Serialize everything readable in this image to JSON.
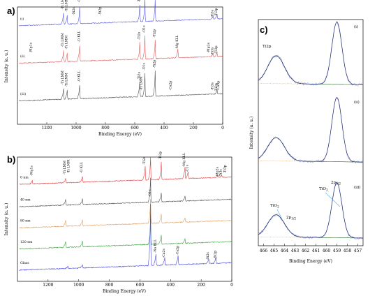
{
  "chart_data": [
    {
      "panel_label": "a)",
      "type": "line",
      "xlabel": "Binding Energy (eV)",
      "ylabel": "Intensity (a. u.)",
      "xlim": [
        1400,
        0
      ],
      "xticks": [
        1200,
        1000,
        800,
        600,
        400,
        200,
        0
      ],
      "series": [
        {
          "label": "(i)",
          "color": "#5a5ae6",
          "baseline": 0.84,
          "peaks": [
            [
              1085,
              0.1
            ],
            [
              1060,
              0.08
            ],
            [
              975,
              0.16
            ],
            [
              565,
              0.16
            ],
            [
              530,
              0.22
            ],
            [
              460,
              0.2
            ],
            [
              65,
              0.03
            ],
            [
              38,
              0.04
            ]
          ]
        },
        {
          "label": "(ii)",
          "color": "#e06060",
          "baseline": 0.52,
          "peaks": [
            [
              1085,
              0.1
            ],
            [
              1060,
              0.08
            ],
            [
              975,
              0.14
            ],
            [
              565,
              0.16
            ],
            [
              530,
              0.22
            ],
            [
              460,
              0.18
            ],
            [
              305,
              0.08
            ],
            [
              65,
              0.03
            ],
            [
              38,
              0.04
            ]
          ]
        },
        {
          "label": "(iii)",
          "color": "#555555",
          "baseline": 0.2,
          "peaks": [
            [
              1085,
              0.1
            ],
            [
              1060,
              0.08
            ],
            [
              975,
              0.12
            ],
            [
              565,
              0.14
            ],
            [
              530,
              0.22
            ],
            [
              460,
              0.24
            ],
            [
              38,
              0.04
            ]
          ]
        }
      ],
      "peak_labels": [
        {
          "text": "-Ti LMM",
          "x": 1085,
          "series": 0
        },
        {
          "text": "-Ti LMM",
          "x": 1060,
          "series": 0
        },
        {
          "text": "-Si2s",
          "x": 1010,
          "series": 0
        },
        {
          "text": "-O KLL",
          "x": 975,
          "series": 0
        },
        {
          "text": "-Si2p",
          "x": 830,
          "series": 0
        },
        {
          "text": "-Ti2s",
          "x": 565,
          "series": 0
        },
        {
          "text": "-O1s",
          "x": 530,
          "series": 0
        },
        {
          "text": "-Ti2p",
          "x": 460,
          "series": 0
        },
        {
          "text": "-Ti3s",
          "x": 65,
          "series": 0
        },
        {
          "text": "-Ti3p",
          "x": 38,
          "series": 0
        },
        {
          "text": "-Mg1s",
          "x": 1303,
          "series": 1
        },
        {
          "text": "-Ti LMM",
          "x": 1085,
          "series": 1
        },
        {
          "text": "-Ti LMM",
          "x": 1060,
          "series": 1
        },
        {
          "text": "-O KLL",
          "x": 975,
          "series": 1
        },
        {
          "text": "-Ti2s",
          "x": 565,
          "series": 1
        },
        {
          "text": "-O1s",
          "x": 530,
          "series": 1
        },
        {
          "text": "-Ti2p",
          "x": 460,
          "series": 1
        },
        {
          "text": "-Mg KLL",
          "x": 305,
          "series": 1
        },
        {
          "text": "-Mg2s",
          "x": 90,
          "series": 1
        },
        {
          "text": "-Ti3s",
          "x": 65,
          "series": 1
        },
        {
          "text": "-Ti3p",
          "x": 38,
          "series": 1
        },
        {
          "text": "-Ti LMM",
          "x": 1085,
          "series": 2
        },
        {
          "text": "-Ti LMM",
          "x": 1060,
          "series": 2
        },
        {
          "text": "-O KLL",
          "x": 975,
          "series": 2
        },
        {
          "text": "-Ca2p",
          "x": 350,
          "series": 2
        },
        {
          "text": "-Ti2s",
          "x": 565,
          "series": 2
        },
        {
          "text": "-Ti LMM",
          "x": 550,
          "series": 2
        },
        {
          "text": "-O1s",
          "x": 530,
          "series": 2
        },
        {
          "text": "-Ti2p",
          "x": 460,
          "series": 2
        },
        {
          "text": "-Ca3p",
          "x": 25,
          "series": 2
        },
        {
          "text": "-Ti3s",
          "x": 65,
          "series": 2
        },
        {
          "text": "-Ti3p",
          "x": 38,
          "series": 2
        }
      ]
    },
    {
      "panel_label": "b)",
      "type": "line",
      "xlabel": "Binding Energy (eV)",
      "ylabel": "Intensity (a. u.)",
      "xlim": [
        1400,
        0
      ],
      "xticks": [
        1200,
        1000,
        800,
        600,
        400,
        200,
        0
      ],
      "series": [
        {
          "label": "0 nm",
          "color": "#e04040",
          "baseline": 0.78,
          "peaks": [
            [
              1303,
              0.03
            ],
            [
              1085,
              0.04
            ],
            [
              975,
              0.05
            ],
            [
              565,
              0.12
            ],
            [
              530,
              0.2
            ],
            [
              460,
              0.16
            ],
            [
              305,
              0.1
            ],
            [
              285,
              0.06
            ],
            [
              90,
              0.02
            ],
            [
              65,
              0.02
            ]
          ]
        },
        {
          "label": "40 nm",
          "color": "#505050",
          "baseline": 0.6,
          "peaks": [
            [
              1085,
              0.05
            ],
            [
              975,
              0.05
            ],
            [
              530,
              0.22
            ],
            [
              460,
              0.08
            ],
            [
              305,
              0.04
            ]
          ]
        },
        {
          "label": "80 nm",
          "color": "#e0a060",
          "baseline": 0.43,
          "peaks": [
            [
              1085,
              0.05
            ],
            [
              975,
              0.05
            ],
            [
              530,
              0.22
            ],
            [
              460,
              0.08
            ],
            [
              305,
              0.04
            ]
          ]
        },
        {
          "label": "120 nm",
          "color": "#40a040",
          "baseline": 0.26,
          "peaks": [
            [
              1085,
              0.05
            ],
            [
              975,
              0.05
            ],
            [
              530,
              0.22
            ],
            [
              460,
              0.08
            ],
            [
              305,
              0.04
            ]
          ]
        },
        {
          "label": "Glass",
          "color": "#4848e0",
          "baseline": 0.09,
          "peaks": [
            [
              1070,
              0.02
            ],
            [
              975,
              0.03
            ],
            [
              530,
              0.55
            ],
            [
              495,
              0.1
            ],
            [
              438,
              0.06
            ],
            [
              350,
              0.08
            ],
            [
              150,
              0.04
            ],
            [
              103,
              0.05
            ]
          ]
        }
      ],
      "peak_labels": [
        {
          "text": "-Mg1s",
          "x": 1303,
          "series": 0
        },
        {
          "text": "-Ti LMM",
          "x": 1085,
          "series": 0
        },
        {
          "text": "-Ti LMM",
          "x": 1060,
          "series": 0
        },
        {
          "text": "-O KLL",
          "x": 975,
          "series": 0
        },
        {
          "text": "-Ti2s",
          "x": 565,
          "series": 0
        },
        {
          "text": "-Ti2p",
          "x": 460,
          "series": 0
        },
        {
          "text": "-Mg KLL",
          "x": 305,
          "series": 0
        },
        {
          "text": "-C1s",
          "x": 285,
          "series": 0
        },
        {
          "text": "-Mg2s",
          "x": 90,
          "series": 0
        },
        {
          "text": "-Ti3s",
          "x": 65,
          "series": 0
        },
        {
          "text": "-Ti3p",
          "x": 38,
          "series": 0
        },
        {
          "text": "-O1s",
          "x": 530,
          "series": 4
        },
        {
          "text": "-Na KLL",
          "x": 495,
          "series": 4
        },
        {
          "text": "-Ca2s",
          "x": 438,
          "series": 4
        },
        {
          "text": "-Ca2p",
          "x": 350,
          "series": 4
        },
        {
          "text": "-Si2s",
          "x": 150,
          "series": 4
        },
        {
          "text": "-Si2p",
          "x": 103,
          "series": 4
        }
      ]
    },
    {
      "panel_label": "c)",
      "type": "line",
      "title": "Ti2p",
      "xlabel": "Binding Energy (eV)",
      "ylabel": "Intensity (a. u.)",
      "xlim": [
        466.5,
        456.5
      ],
      "xticks": [
        466,
        465,
        464,
        463,
        462,
        461,
        460,
        459,
        458,
        457
      ],
      "series": [
        {
          "label": "(i)",
          "peaks": [
            [
              464.8,
              0.42
            ],
            [
              459.0,
              1.0
            ]
          ]
        },
        {
          "label": "(ii)",
          "peaks": [
            [
              464.8,
              0.34
            ],
            [
              459.0,
              1.0
            ]
          ]
        },
        {
          "label": "(iii)",
          "peaks": [
            [
              464.8,
              0.38
            ],
            [
              459.0,
              1.0
            ]
          ]
        }
      ],
      "annotations": [
        "2p3/2",
        "TiO2",
        "TiO2",
        "2p1/2"
      ]
    }
  ],
  "colors": {
    "fit_envelope": "#1f2a78",
    "data_dots": "#9090d0",
    "fit_component": "#2b7a3a",
    "background": "#d6924a",
    "residual": "#e08a8a"
  }
}
